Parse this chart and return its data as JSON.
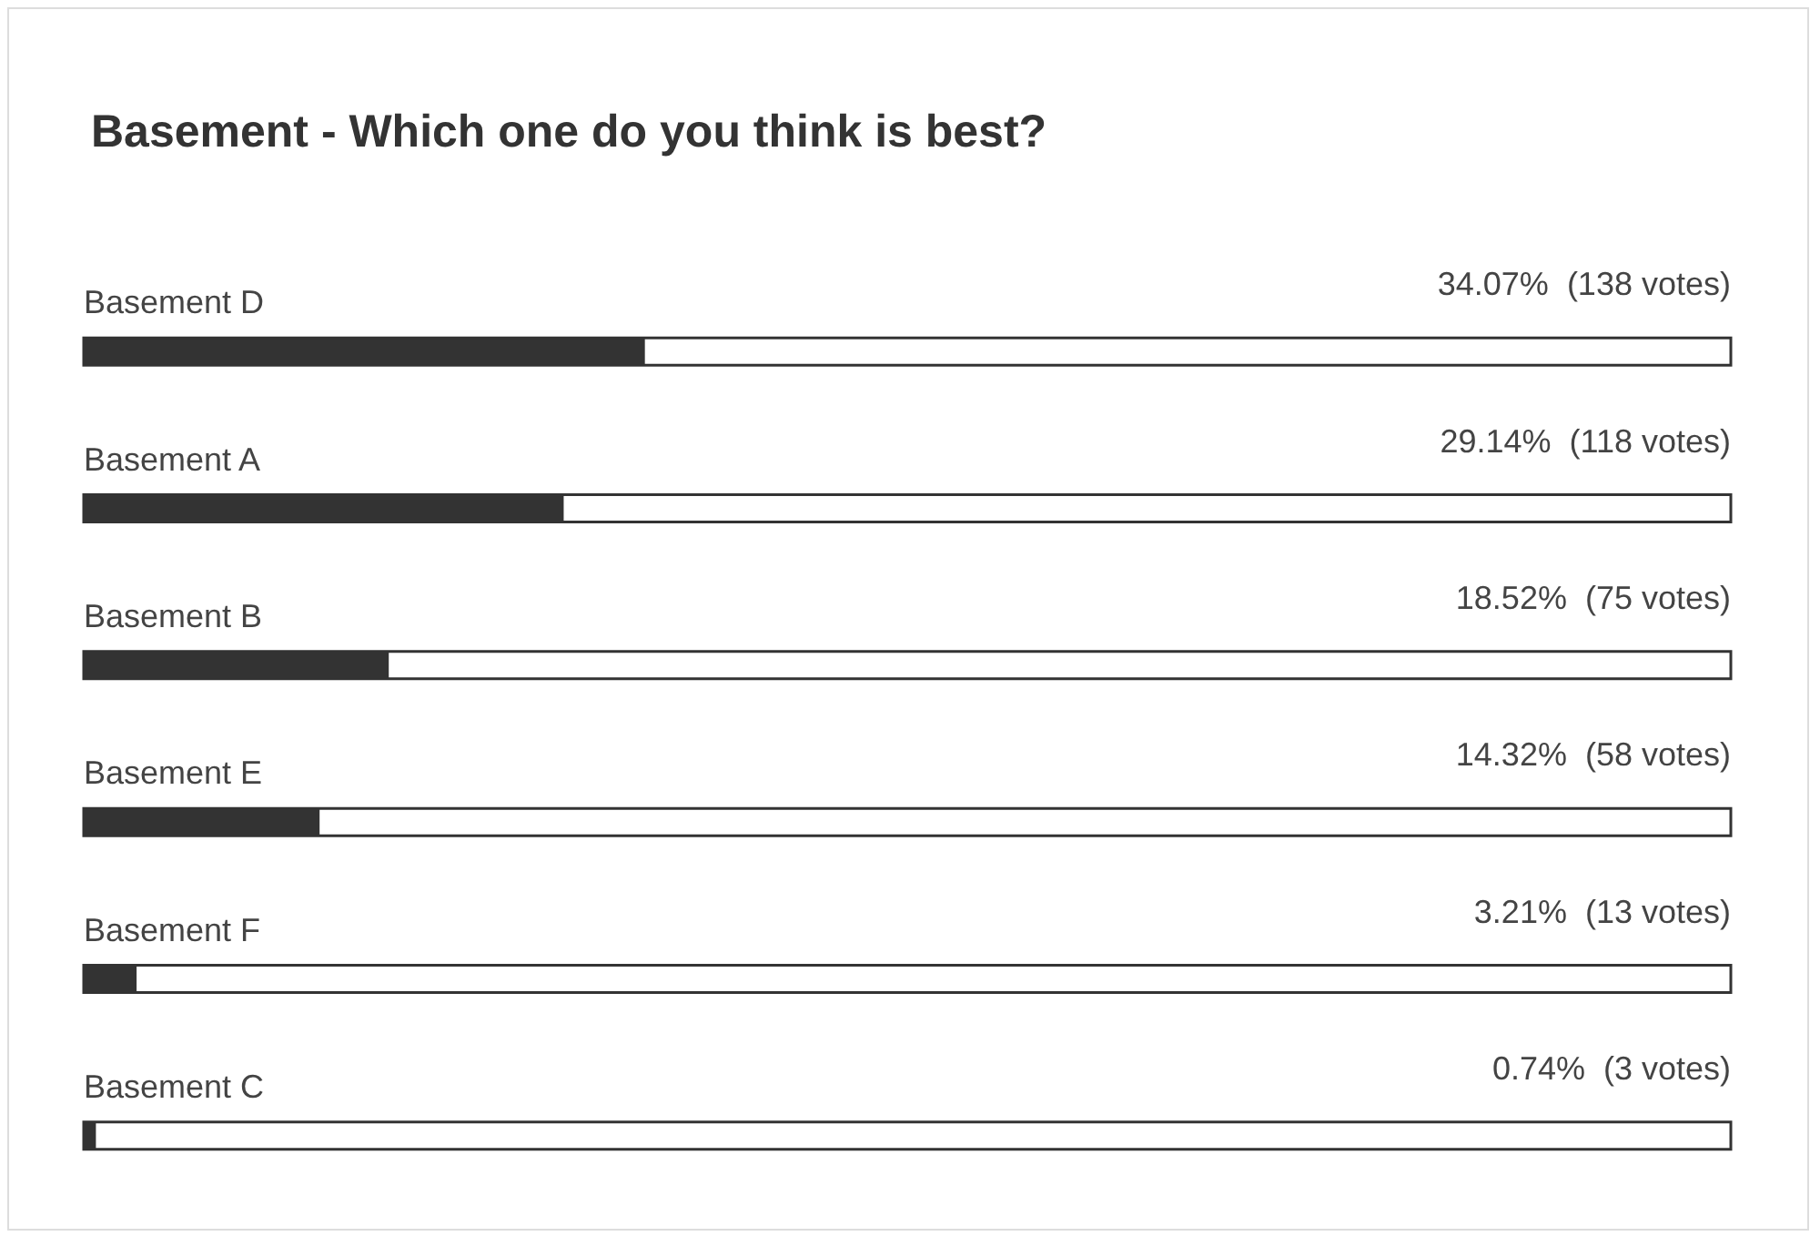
{
  "chart_data": {
    "type": "bar",
    "orientation": "horizontal",
    "title": "Basement - Which one do you think is best?",
    "categories": [
      "Basement D",
      "Basement A",
      "Basement B",
      "Basement E",
      "Basement F",
      "Basement C"
    ],
    "values": [
      34.07,
      29.14,
      18.52,
      14.32,
      3.21,
      0.74
    ],
    "value_labels": [
      "34.07%  (138 votes)",
      "29.14%  (118 votes)",
      "18.52%  (75 votes)",
      "14.32%  (58 votes)",
      "3.21%  (13 votes)",
      "0.74%  (3 votes)"
    ],
    "color": "#333333",
    "xlim": [
      0,
      100
    ],
    "tick_labels": "y"
  }
}
